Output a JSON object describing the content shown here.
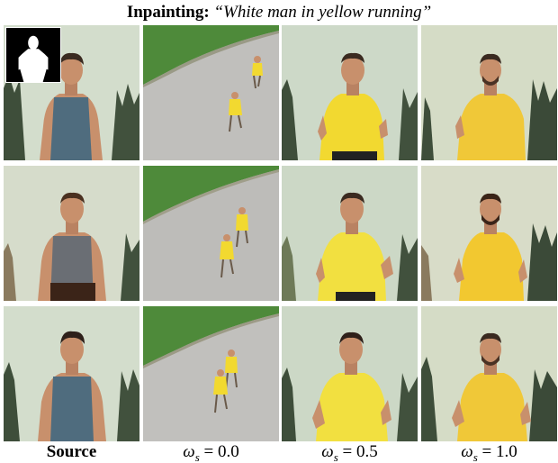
{
  "figure": {
    "title_bold": "Inpainting:",
    "title_prompt": "“White man in yellow running”",
    "column_labels": [
      {
        "text": "Source",
        "bold": true
      },
      {
        "symbol": "ω",
        "subscript": "s",
        "rest": " = 0.0"
      },
      {
        "symbol": "ω",
        "subscript": "s",
        "rest": " = 0.5"
      },
      {
        "symbol": "ω",
        "subscript": "s",
        "rest": " = 1.0"
      }
    ],
    "rows": 3,
    "columns": 4
  },
  "colors": {
    "sky": "#cdd9c8",
    "grass": "#4e8a3a",
    "road": "#bebdba",
    "tank": "#4f6c7e",
    "yellow": "#f2d930",
    "skin": "#c8906c",
    "tree": "#3b4a38"
  }
}
